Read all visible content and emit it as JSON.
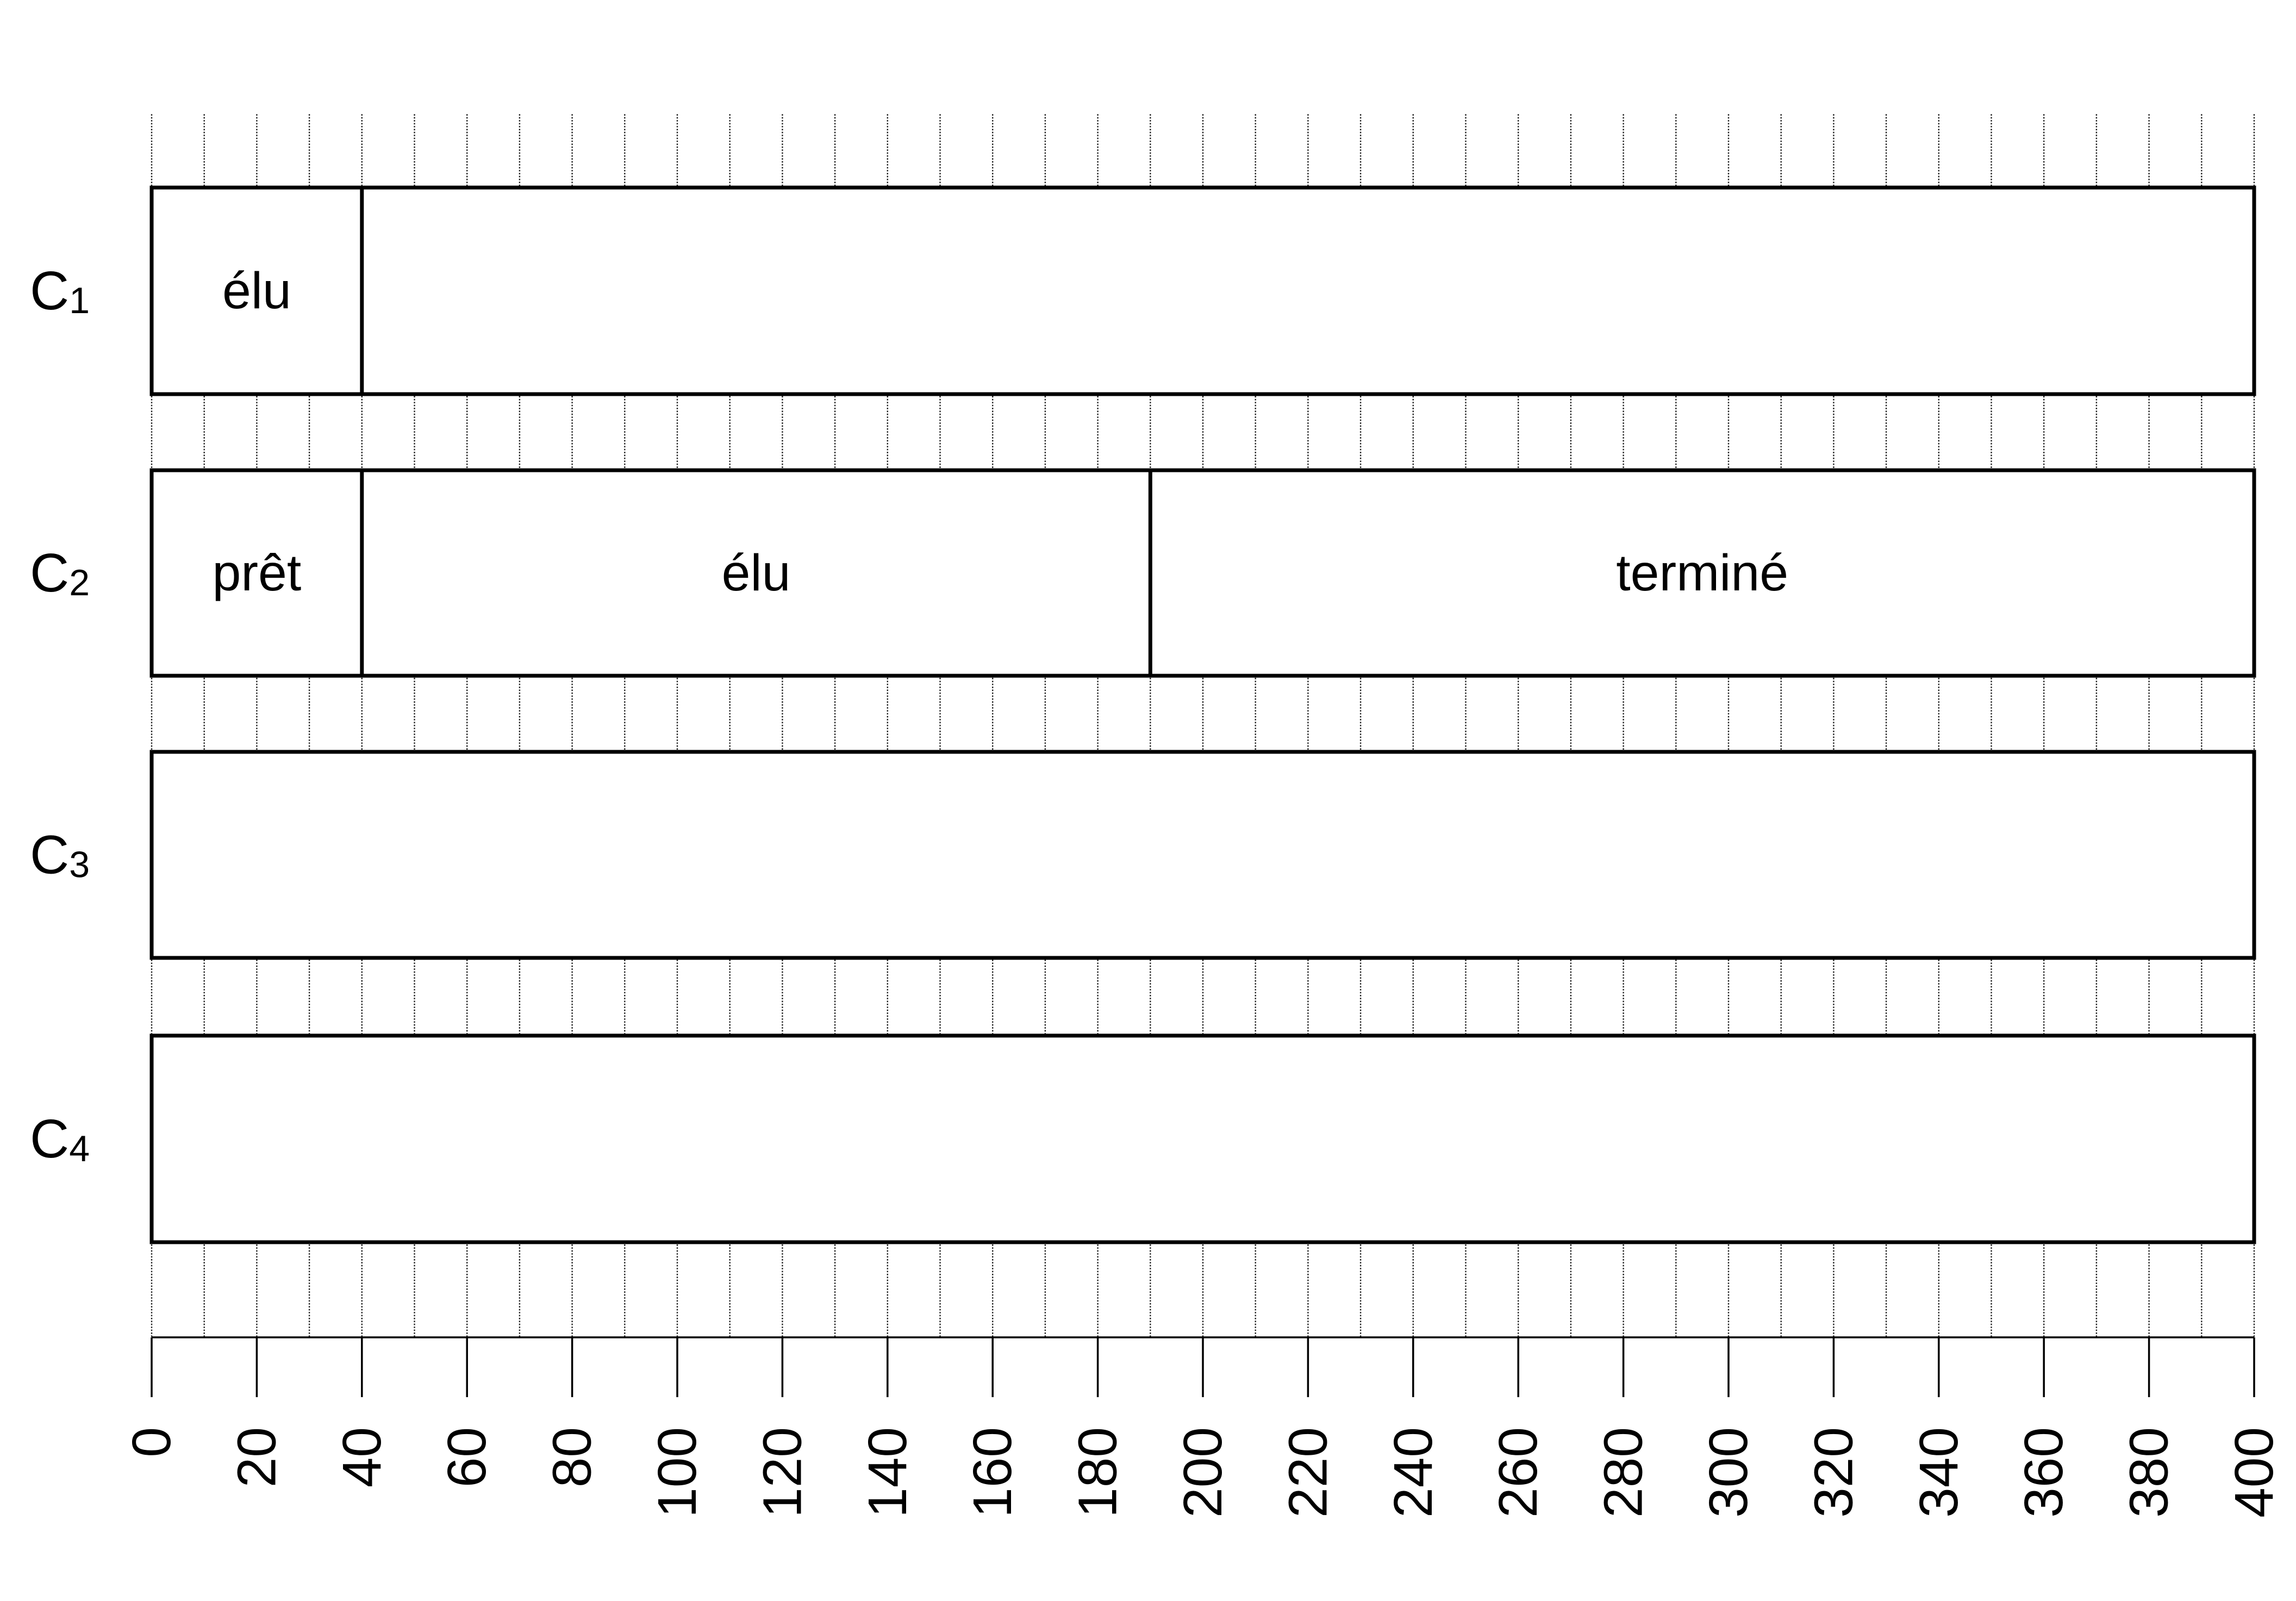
{
  "chart_data": {
    "type": "timeline",
    "xlim": [
      0,
      400
    ],
    "x_ticks": [
      0,
      20,
      40,
      60,
      80,
      100,
      120,
      140,
      160,
      180,
      200,
      220,
      240,
      260,
      280,
      300,
      320,
      340,
      360,
      380,
      400
    ],
    "x_tick_labels": [
      "0",
      "20",
      "40",
      "60",
      "80",
      "100",
      "120",
      "140",
      "160",
      "180",
      "200",
      "220",
      "240",
      "260",
      "280",
      "300",
      "320",
      "340",
      "360",
      "380",
      "400"
    ],
    "minor_grid_step": 10,
    "grid": true,
    "title": "",
    "xlabel": "",
    "ylabel": "",
    "rows": [
      {
        "id": "C1",
        "label_base": "C",
        "label_sub": "1",
        "segments": [
          {
            "start": 0,
            "end": 40,
            "label": "élu"
          },
          {
            "start": 40,
            "end": 400,
            "label": ""
          }
        ]
      },
      {
        "id": "C2",
        "label_base": "C",
        "label_sub": "2",
        "segments": [
          {
            "start": 0,
            "end": 40,
            "label": "prêt"
          },
          {
            "start": 40,
            "end": 190,
            "label": "élu"
          },
          {
            "start": 190,
            "end": 400,
            "label": "terminé"
          }
        ]
      },
      {
        "id": "C3",
        "label_base": "C",
        "label_sub": "3",
        "segments": [
          {
            "start": 0,
            "end": 400,
            "label": ""
          }
        ]
      },
      {
        "id": "C4",
        "label_base": "C",
        "label_sub": "4",
        "segments": [
          {
            "start": 0,
            "end": 400,
            "label": ""
          }
        ]
      }
    ]
  }
}
